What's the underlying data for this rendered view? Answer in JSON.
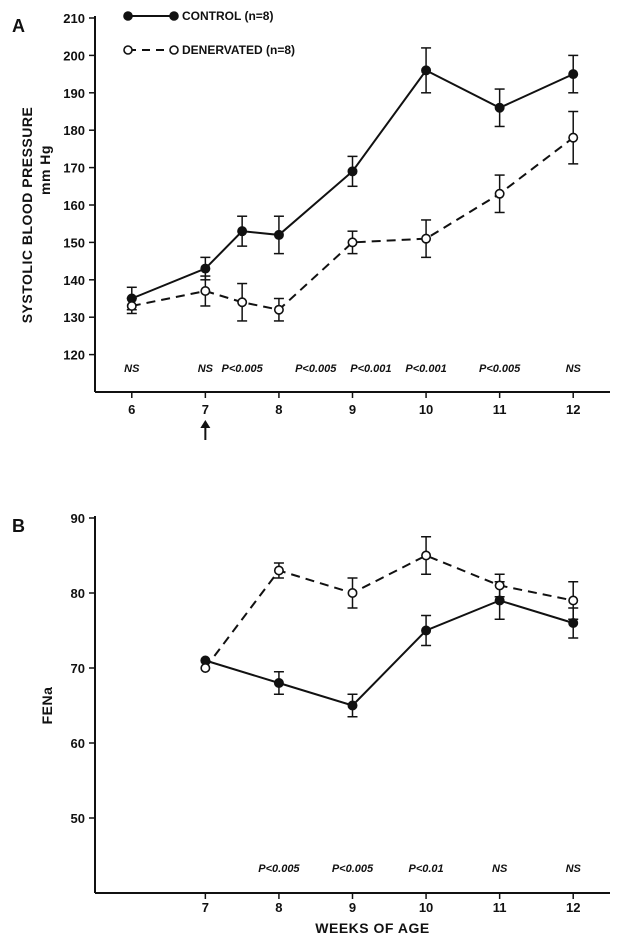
{
  "chart_data": [
    {
      "type": "line",
      "panel_label": "A",
      "ylabel": "SYSTOLIC BLOOD PRESSURE",
      "ylabel_unit": "mm Hg",
      "xlabel": "",
      "ylim": [
        110,
        210
      ],
      "yticks": [
        120,
        130,
        140,
        150,
        160,
        170,
        180,
        190,
        200,
        210
      ],
      "xlim": [
        5.5,
        12.5
      ],
      "xticks": [
        6,
        7,
        8,
        9,
        10,
        11,
        12
      ],
      "arrow_at": 7,
      "legend": [
        {
          "label": "CONTROL (n=8)",
          "style": "solid-filled"
        },
        {
          "label": "DENERVATED (n=8)",
          "style": "dashed-open"
        }
      ],
      "series": [
        {
          "name": "CONTROL (n=8)",
          "style": "solid-filled",
          "x": [
            6,
            7,
            7.5,
            8,
            9,
            10,
            11,
            12
          ],
          "y": [
            135,
            143,
            153,
            152,
            169,
            196,
            186,
            195
          ],
          "err": [
            3,
            3,
            4,
            5,
            4,
            6,
            5,
            5
          ]
        },
        {
          "name": "DENERVATED (n=8)",
          "style": "dashed-open",
          "x": [
            6,
            7,
            7.5,
            8,
            9,
            10,
            11,
            12
          ],
          "y": [
            133,
            137,
            134,
            132,
            150,
            151,
            163,
            178
          ],
          "err": [
            2,
            4,
            5,
            3,
            3,
            5,
            5,
            7
          ]
        }
      ],
      "annotations": [
        {
          "x": 6,
          "text": "NS"
        },
        {
          "x": 7,
          "text": "NS"
        },
        {
          "x": 7.5,
          "text": "P<0.005"
        },
        {
          "x": 8.5,
          "text": "P<0.005"
        },
        {
          "x": 9.25,
          "text": "P<0.001"
        },
        {
          "x": 10,
          "text": "P<0.001"
        },
        {
          "x": 11,
          "text": "P<0.005"
        },
        {
          "x": 12,
          "text": "NS"
        }
      ]
    },
    {
      "type": "line",
      "panel_label": "B",
      "ylabel": "FENa",
      "xlabel": "WEEKS OF AGE",
      "ylim": [
        40,
        90
      ],
      "yticks": [
        50,
        60,
        70,
        80,
        90
      ],
      "xlim": [
        5.5,
        12.5
      ],
      "xticks": [
        7,
        8,
        9,
        10,
        11,
        12
      ],
      "series": [
        {
          "name": "CONTROL (n=8)",
          "style": "solid-filled",
          "x": [
            7,
            8,
            9,
            10,
            11,
            12
          ],
          "y": [
            71,
            68,
            65,
            75,
            79,
            76
          ],
          "err": [
            0,
            1.5,
            1.5,
            2,
            2.5,
            2
          ]
        },
        {
          "name": "DENERVATED (n=8)",
          "style": "dashed-open",
          "x": [
            7,
            8,
            9,
            10,
            11,
            12
          ],
          "y": [
            70,
            83,
            80,
            85,
            81,
            79
          ],
          "err": [
            0,
            1,
            2,
            2.5,
            1.5,
            2.5
          ]
        }
      ],
      "annotations": [
        {
          "x": 8,
          "text": "P<0.005"
        },
        {
          "x": 9,
          "text": "P<0.005"
        },
        {
          "x": 10,
          "text": "P<0.01"
        },
        {
          "x": 11,
          "text": "NS"
        },
        {
          "x": 12,
          "text": "NS"
        }
      ]
    }
  ]
}
